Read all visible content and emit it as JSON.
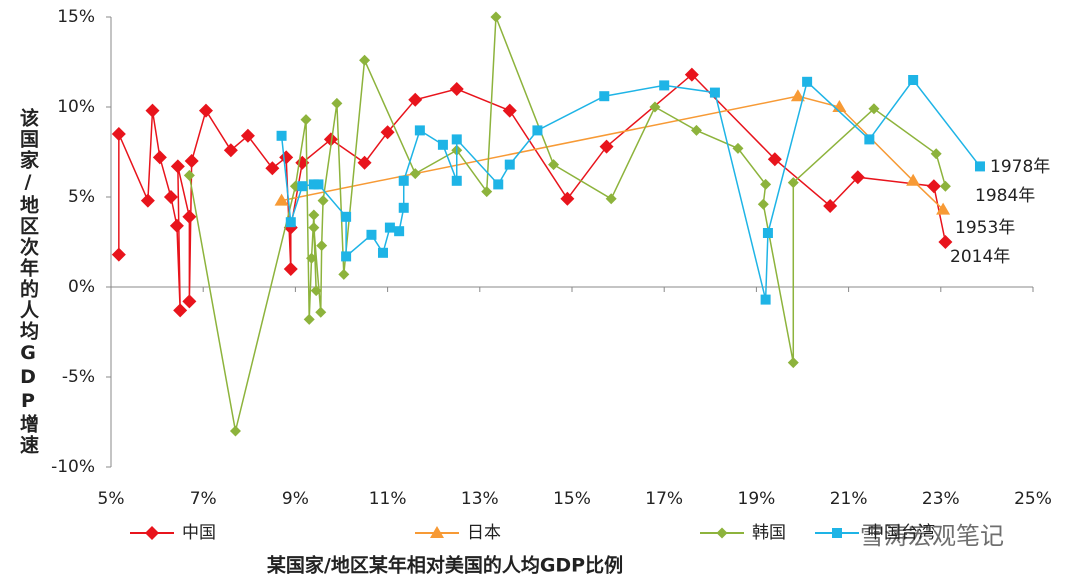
{
  "chart_data": {
    "type": "line",
    "xlabel": "某国家/地区某年相对美国的人均GDP比例",
    "ylabel": "该国家/地区次年的人均GDP增速",
    "xlim": [
      5,
      25
    ],
    "xticks": [
      {
        "value": 5,
        "label": "5%"
      },
      {
        "value": 7,
        "label": "7%"
      },
      {
        "value": 9,
        "label": "9%"
      },
      {
        "value": 11,
        "label": "11%"
      },
      {
        "value": 13,
        "label": "13%"
      },
      {
        "value": 15,
        "label": "15%"
      },
      {
        "value": 17,
        "label": "17%"
      },
      {
        "value": 19,
        "label": "19%"
      },
      {
        "value": 21,
        "label": "21%"
      },
      {
        "value": 23,
        "label": "23%"
      },
      {
        "value": 25,
        "label": "25%"
      }
    ],
    "ylim": [
      -10,
      15
    ],
    "yticks": [
      {
        "value": -10,
        "label": "-10%"
      },
      {
        "value": -5,
        "label": "-5%"
      },
      {
        "value": 0,
        "label": "0%"
      },
      {
        "value": 5,
        "label": "5%"
      },
      {
        "value": 10,
        "label": "10%"
      },
      {
        "value": 15,
        "label": "15%"
      }
    ],
    "annotations": [
      "1978年",
      "1984年",
      "1953年",
      "2014年"
    ],
    "watermark": "雪涛宏观笔记",
    "series": [
      {
        "name": "中国",
        "color": "#e8141c",
        "marker": "diamond",
        "x": [
          5.17,
          5.17,
          5.8,
          5.9,
          6.06,
          6.3,
          6.43,
          6.5,
          6.45,
          6.7,
          6.7,
          6.75,
          7.06,
          7.6,
          7.97,
          8.5,
          8.8,
          8.9,
          8.9,
          9.15,
          9.77,
          10.5,
          11.0,
          11.6,
          12.5,
          13.65,
          14.9,
          15.75,
          17.6,
          19.4,
          20.6,
          21.2,
          22.85,
          23.1
        ],
        "values": [
          1.8,
          8.5,
          4.8,
          9.8,
          7.2,
          5.0,
          3.4,
          -1.3,
          6.7,
          3.9,
          -0.8,
          7.0,
          9.8,
          7.6,
          8.4,
          6.6,
          7.2,
          1.0,
          3.3,
          6.9,
          8.2,
          6.9,
          8.6,
          10.4,
          11.0,
          9.8,
          4.9,
          7.8,
          11.8,
          7.1,
          4.5,
          6.1,
          5.6,
          2.5
        ]
      },
      {
        "name": "日本",
        "color": "#f79a35",
        "marker": "triangle",
        "x": [
          8.7,
          19.9,
          20.8,
          22.4,
          23.05
        ],
        "values": [
          4.8,
          10.6,
          10.0,
          5.9,
          4.3
        ]
      },
      {
        "name": "韩国",
        "color": "#8db33c",
        "marker": "diamond-small",
        "x": [
          6.7,
          7.7,
          9.0,
          9.23,
          9.3,
          9.35,
          9.4,
          9.45,
          9.4,
          9.55,
          9.57,
          9.6,
          9.9,
          10.05,
          10.5,
          11.6,
          12.5,
          13.15,
          13.35,
          14.6,
          15.85,
          16.8,
          17.7,
          18.6,
          19.2,
          19.15,
          19.8,
          19.8,
          21.55,
          22.9,
          23.1
        ],
        "values": [
          6.2,
          -8.0,
          5.6,
          9.3,
          -1.8,
          1.6,
          4.0,
          -0.2,
          3.3,
          -1.4,
          2.3,
          4.8,
          10.2,
          0.7,
          12.6,
          6.3,
          7.6,
          5.3,
          15.0,
          6.8,
          4.9,
          10.0,
          8.7,
          7.7,
          5.7,
          4.6,
          -4.2,
          5.8,
          9.9,
          7.4,
          5.6
        ]
      },
      {
        "name": "中国台湾",
        "color": "#1eb4e6",
        "marker": "square",
        "x": [
          8.7,
          8.9,
          9.15,
          9.4,
          9.5,
          10.1,
          10.1,
          10.65,
          10.9,
          11.05,
          11.25,
          11.35,
          11.35,
          11.7,
          12.2,
          12.5,
          12.5,
          13.4,
          13.65,
          14.25,
          15.7,
          17.0,
          18.1,
          19.2,
          19.25,
          20.1,
          21.45,
          22.4,
          23.85
        ],
        "values": [
          8.4,
          3.6,
          5.6,
          5.7,
          5.7,
          3.9,
          1.7,
          2.9,
          1.9,
          3.3,
          3.1,
          4.4,
          5.9,
          8.7,
          7.9,
          5.9,
          8.2,
          5.7,
          6.8,
          8.7,
          10.6,
          11.2,
          10.8,
          -0.7,
          3.0,
          11.4,
          8.2,
          11.5,
          6.7
        ]
      }
    ]
  }
}
